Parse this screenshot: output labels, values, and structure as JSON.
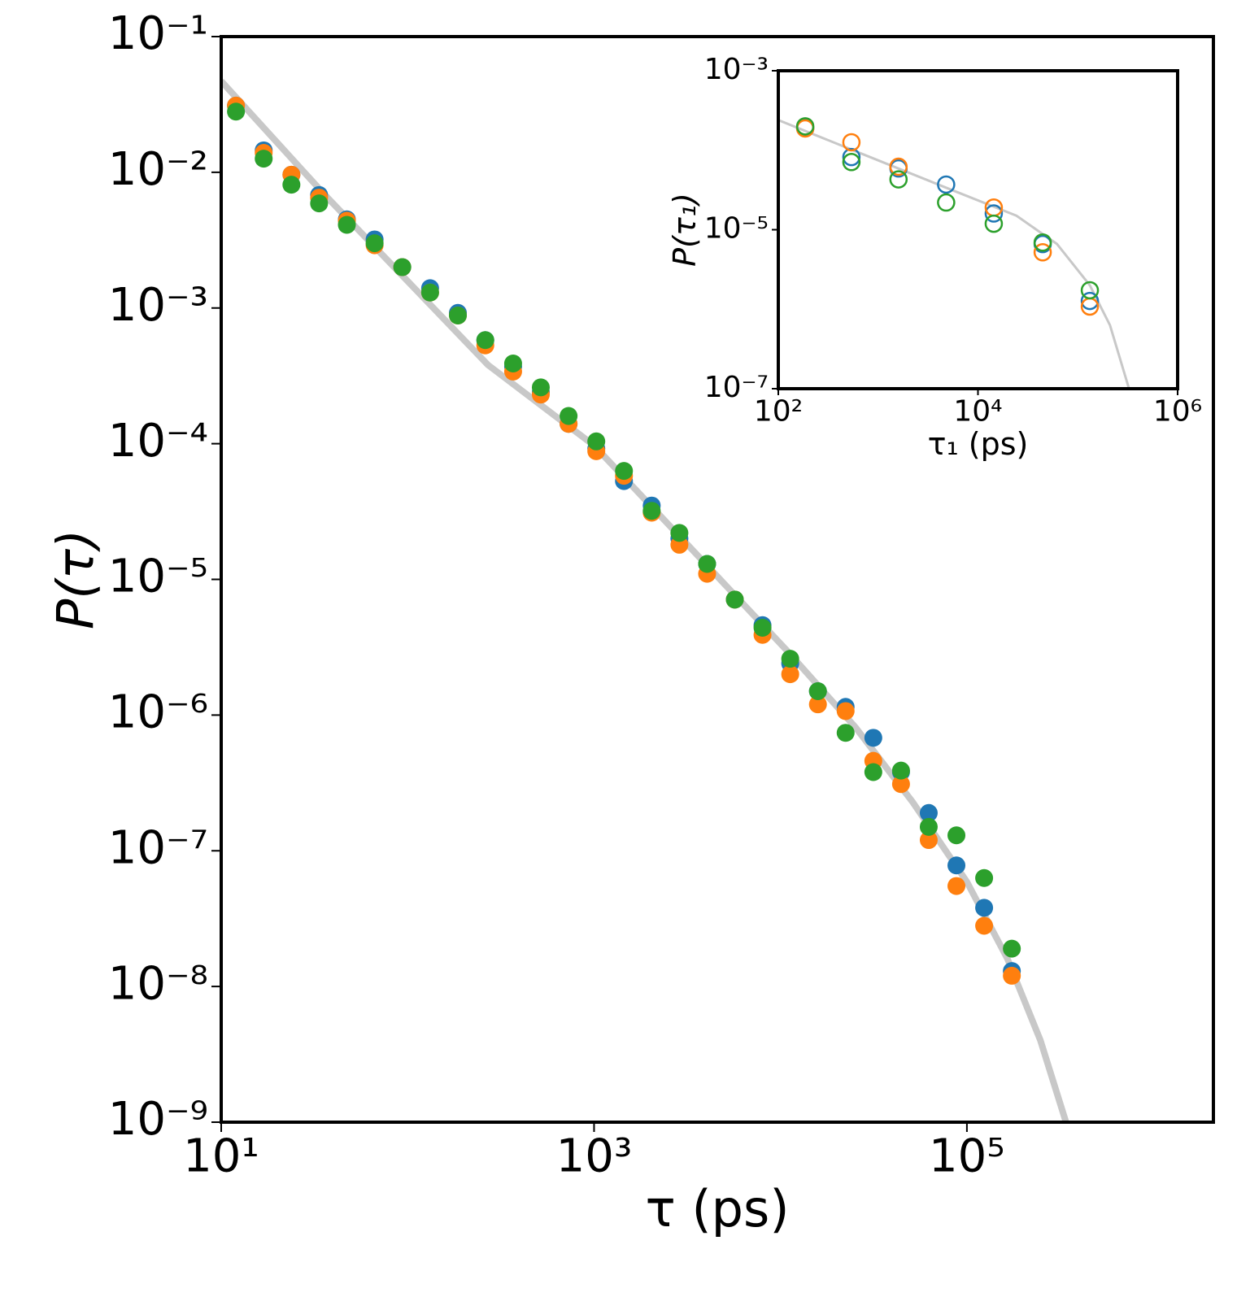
{
  "chart_data": [
    {
      "type": "scatter",
      "xlabel": "τ (ps)",
      "ylabel": "P(τ)",
      "log_x": true,
      "log_y": true,
      "marker": "filled",
      "xlim": [
        10,
        2100000
      ],
      "ylim": [
        1e-09,
        0.1
      ],
      "xticks": [
        {
          "value": 10,
          "label": "10¹"
        },
        {
          "value": 1000,
          "label": "10³"
        },
        {
          "value": 100000,
          "label": "10⁵"
        }
      ],
      "yticks": [
        {
          "value": 0.1,
          "label": "10⁻¹"
        },
        {
          "value": 0.01,
          "label": "10⁻²"
        },
        {
          "value": 0.001,
          "label": "10⁻³"
        },
        {
          "value": 0.0001,
          "label": "10⁻⁴"
        },
        {
          "value": 1e-05,
          "label": "10⁻⁵"
        },
        {
          "value": 1e-06,
          "label": "10⁻⁶"
        },
        {
          "value": 1e-07,
          "label": "10⁻⁷"
        },
        {
          "value": 1e-08,
          "label": "10⁻⁸"
        },
        {
          "value": 1e-09,
          "label": "10⁻⁹"
        }
      ],
      "x": [
        12,
        16.9,
        23.8,
        33.5,
        47.2,
        66.5,
        93.6,
        132,
        186,
        261,
        368,
        518,
        730,
        1028,
        1447,
        2038,
        2869,
        4040,
        5688,
        8009,
        11277,
        15878,
        22356,
        31477,
        44320,
        62403,
        87863,
        123711,
        174185
      ],
      "series": [
        {
          "color": "#c8c8c8",
          "style": "line",
          "x": [
            10,
            36,
            99,
            270,
            1000,
            3300,
            10800,
            25300,
            51000,
            100000,
            165000,
            248000,
            340000
          ],
          "values": [
            0.047,
            0.0068,
            0.0016,
            0.00038,
            9.7e-05,
            1.7e-05,
            3e-06,
            8.1e-07,
            2.3e-07,
            5.9e-08,
            1.6e-08,
            4e-09,
            1e-09
          ]
        },
        {
          "color": "#1f77b4",
          "values": [
            0.031,
            0.0145,
            0.0096,
            0.0068,
            0.0045,
            0.0032,
            0.002,
            0.0014,
            0.00092,
            0.00058,
            0.00037,
            0.00024,
            0.00014,
            9.2e-05,
            5.3e-05,
            3.5e-05,
            2e-05,
            1.3e-05,
            7.1e-06,
            4.6e-06,
            2.4e-06,
            1.5e-06,
            1.15e-06,
            6.8e-07,
            3.8e-07,
            1.9e-07,
            7.8e-08,
            3.8e-08,
            1.3e-08
          ]
        },
        {
          "color": "#ff7f0e",
          "values": [
            0.031,
            0.0139,
            0.0096,
            0.0065,
            0.0044,
            0.0029,
            0.002,
            0.0013,
            0.00088,
            0.00053,
            0.00034,
            0.00023,
            0.00014,
            8.8e-05,
            5.8e-05,
            3.1e-05,
            1.8e-05,
            1.1e-05,
            7.1e-06,
            3.9e-06,
            2e-06,
            1.2e-06,
            1.07e-06,
            4.6e-07,
            3.1e-07,
            1.2e-07,
            5.5e-08,
            2.8e-08,
            1.2e-08
          ]
        },
        {
          "color": "#2ca02c",
          "values": [
            0.028,
            0.0126,
            0.0081,
            0.0059,
            0.0041,
            0.003,
            0.002,
            0.0013,
            0.00088,
            0.00058,
            0.00039,
            0.00026,
            0.00016,
            0.000104,
            6.3e-05,
            3.2e-05,
            2.2e-05,
            1.3e-05,
            7.1e-06,
            4.4e-06,
            2.6e-06,
            1.5e-06,
            7.4e-07,
            3.8e-07,
            3.9e-07,
            1.5e-07,
            1.3e-07,
            6.3e-08,
            1.9e-08
          ]
        }
      ]
    },
    {
      "type": "scatter",
      "xlabel": "τ₁ (ps)",
      "ylabel": "P(τ₁)",
      "log_x": true,
      "log_y": true,
      "marker": "open",
      "xlim": [
        100,
        1000000
      ],
      "ylim": [
        1e-07,
        0.001
      ],
      "xticks": [
        {
          "value": 100,
          "label": "10²"
        },
        {
          "value": 10000,
          "label": "10⁴"
        },
        {
          "value": 1000000,
          "label": "10⁶"
        }
      ],
      "yticks": [
        {
          "value": 0.001,
          "label": "10⁻³"
        },
        {
          "value": 1e-05,
          "label": "10⁻⁵"
        },
        {
          "value": 1e-07,
          "label": "10⁻⁷"
        }
      ],
      "x": [
        186,
        540,
        1600,
        4800,
        14400,
        44500,
        132000
      ],
      "series": [
        {
          "color": "#c8c8c8",
          "style": "line",
          "x": [
            100,
            572,
            4740,
            24300,
            62000,
            132000,
            210000,
            326000
          ],
          "values": [
            0.00024,
            9.9e-05,
            3.4e-05,
            1.5e-05,
            6.6e-06,
            2e-06,
            6.3e-07,
            1e-07
          ]
        },
        {
          "color": "#1f77b4",
          "values": [
            0.00019,
            8.2e-05,
            5.9e-05,
            3.7e-05,
            1.6e-05,
            6.6e-06,
            1.27e-06
          ]
        },
        {
          "color": "#ff7f0e",
          "values": [
            0.000188,
            0.000126,
            6.2e-05,
            null,
            1.9e-05,
            5.2e-06,
            1.08e-06
          ]
        },
        {
          "color": "#2ca02c",
          "values": [
            0.0002,
            7.1e-05,
            4.3e-05,
            2.2e-05,
            1.19e-05,
            6.9e-06,
            1.73e-06
          ]
        }
      ]
    }
  ]
}
